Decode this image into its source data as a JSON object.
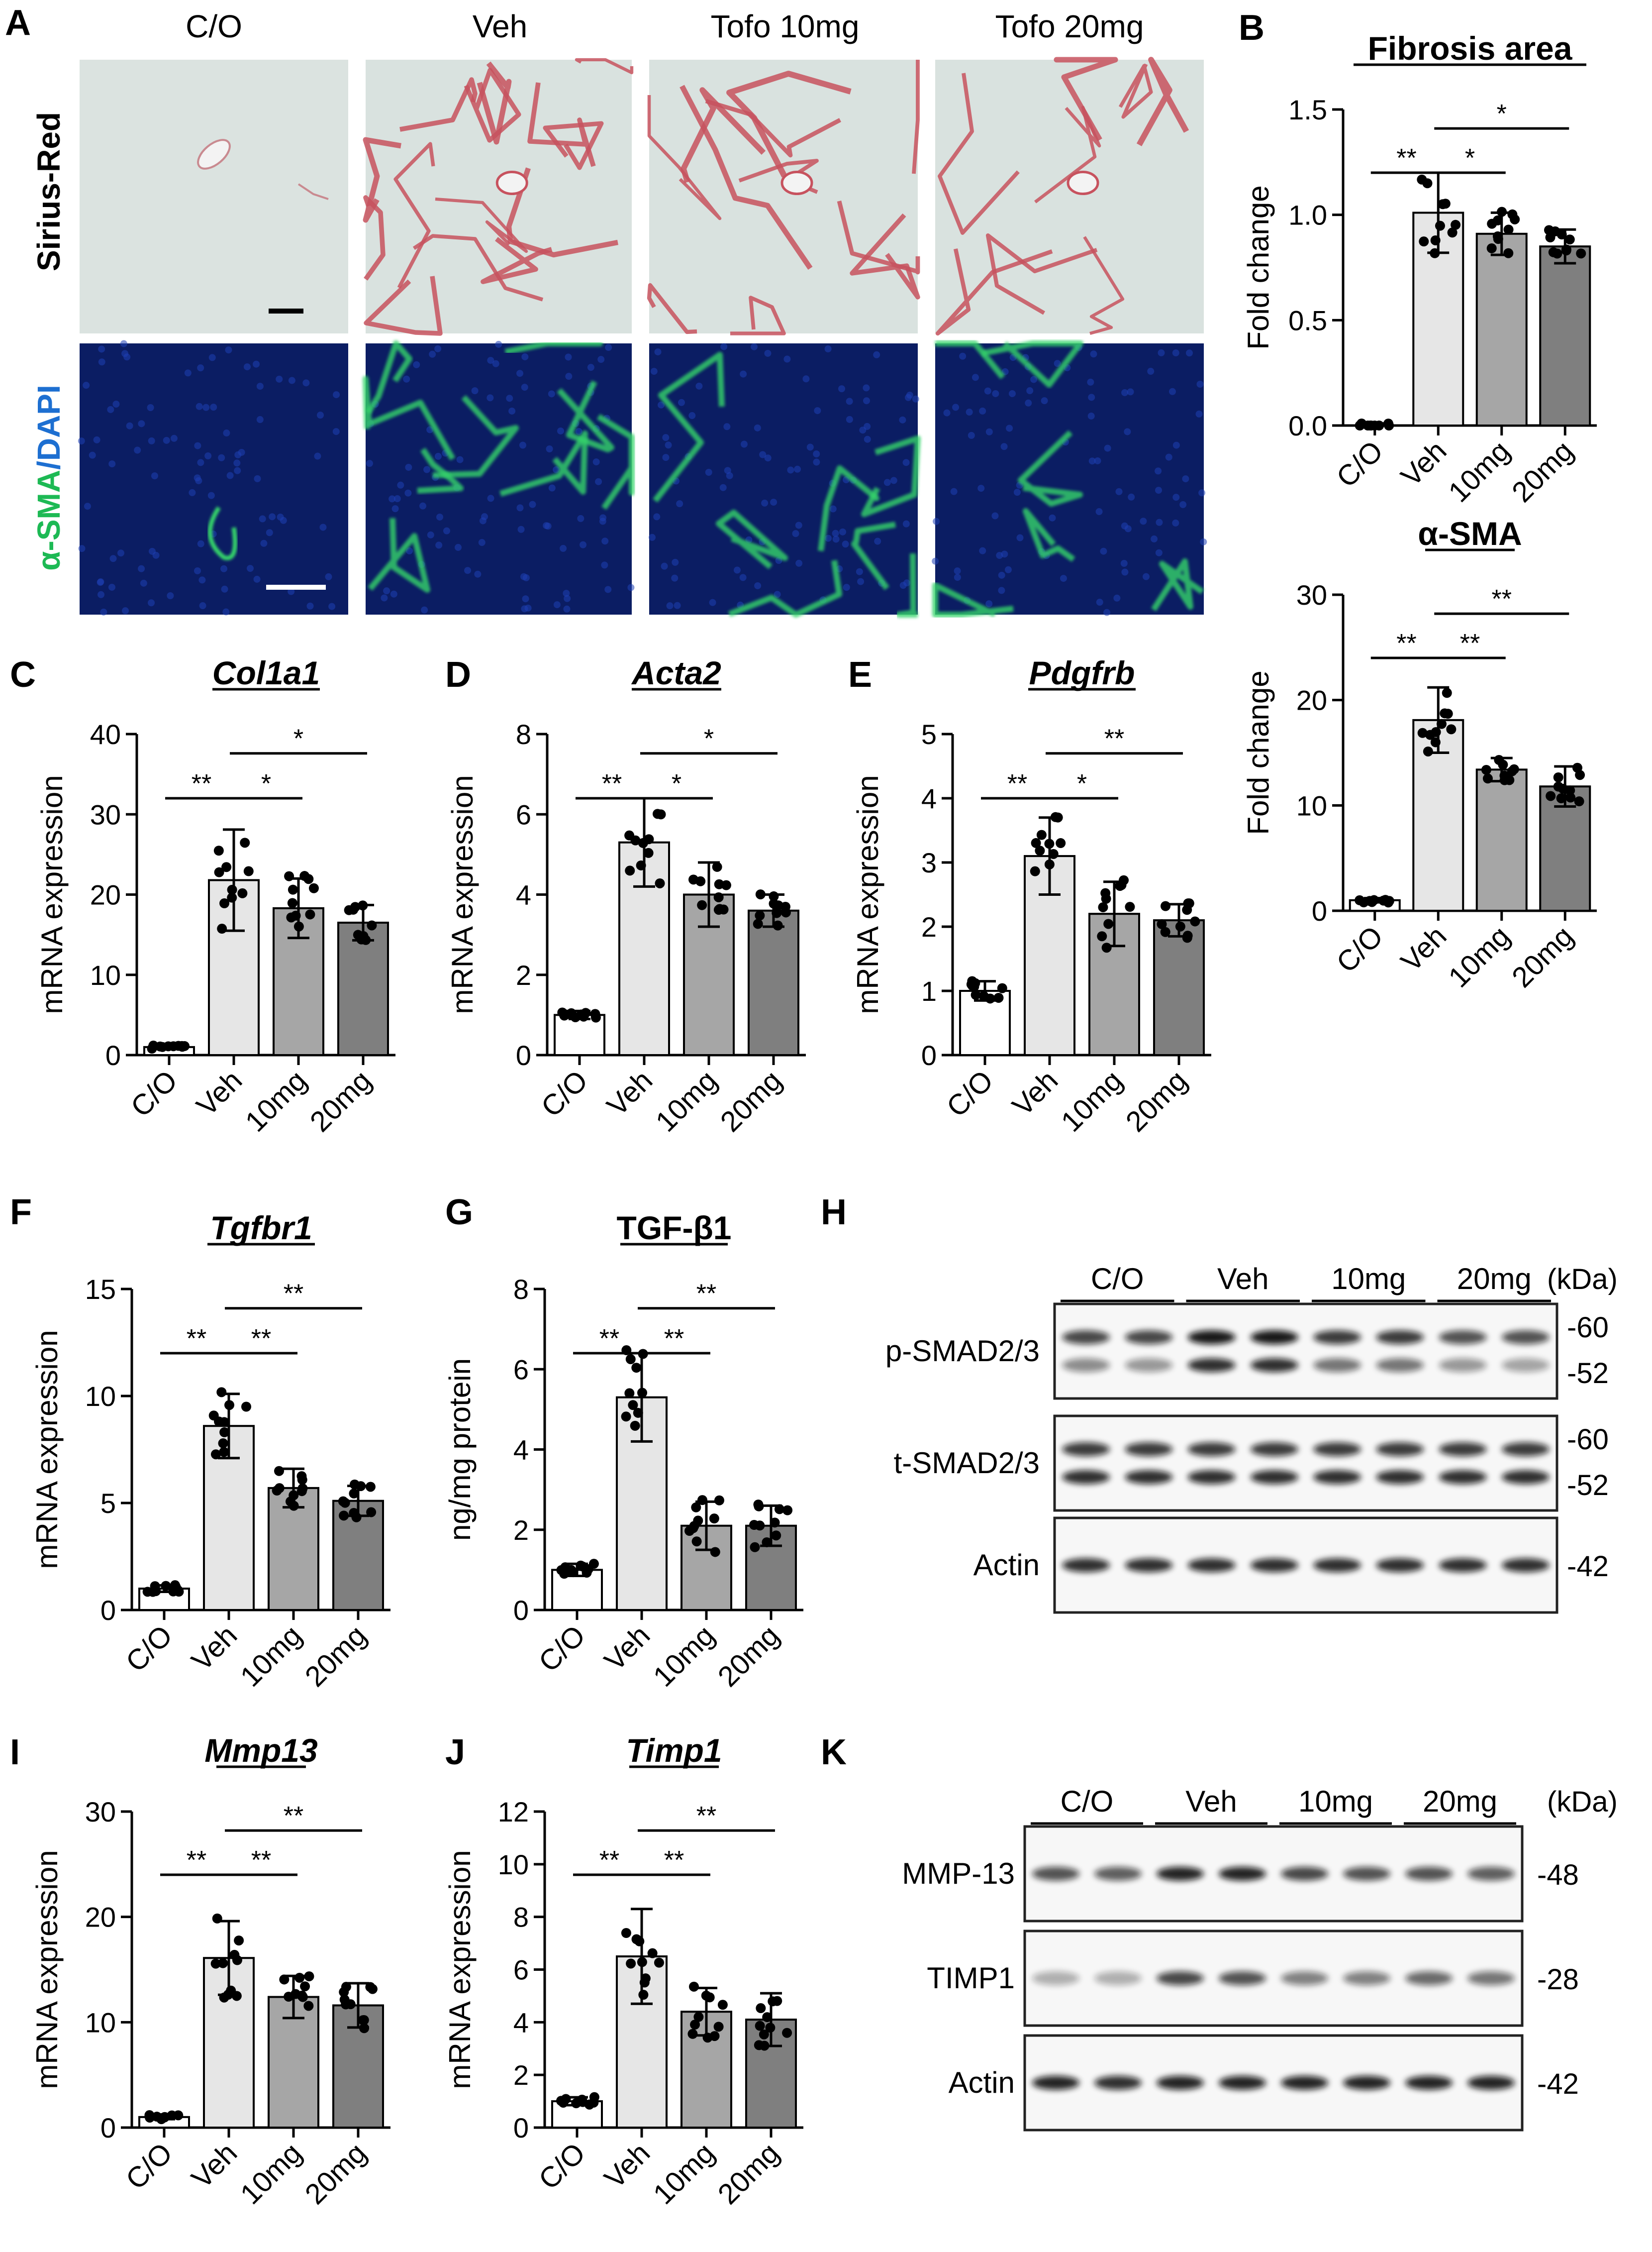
{
  "panel_letters": [
    "A",
    "B",
    "C",
    "D",
    "E",
    "F",
    "G",
    "H",
    "I",
    "J",
    "K"
  ],
  "panel_A": {
    "columns": [
      "C/O",
      "Veh",
      "Tofo 10mg",
      "Tofo 20mg"
    ],
    "row_labels": {
      "sirius": "Sirius-Red",
      "sma_green": "α-SMA",
      "sma_slash": "/",
      "sma_blue": "DAPI"
    }
  },
  "colors": {
    "bar_CO": "#ffffff",
    "bar_Veh": "#e6e6e6",
    "bar_10mg": "#a6a6a6",
    "bar_20mg": "#7f7f7f",
    "sirius_bg": "#d9e2df",
    "sirius_fiber": "#c7525e",
    "fluor_bg": "#0b1d63",
    "fluor_green": "#35d46a"
  },
  "chart_data": [
    {
      "panel": "B",
      "type": "bar",
      "title": "Fibrosis area",
      "title_italic": false,
      "ylabel": "Fold change",
      "categories": [
        "C/O",
        "Veh",
        "10mg",
        "20mg"
      ],
      "values": [
        0.0,
        1.01,
        0.91,
        0.85
      ],
      "sd": [
        0.01,
        0.19,
        0.1,
        0.08
      ],
      "ylim": [
        0,
        1.5
      ],
      "yticks": [
        "0.0",
        "0.5",
        "1.0",
        "1.5"
      ],
      "significance": [
        {
          "from": 0,
          "to": 1,
          "label": "**"
        },
        {
          "from": 1,
          "to": 2,
          "label": "*"
        },
        {
          "from": 1,
          "to": 3,
          "label": "*"
        }
      ]
    },
    {
      "panel": "B2",
      "type": "bar",
      "title": "α-SMA",
      "title_italic": false,
      "ylabel": "Fold change",
      "categories": [
        "C/O",
        "Veh",
        "10mg",
        "20mg"
      ],
      "values": [
        1.0,
        18.1,
        13.4,
        11.8
      ],
      "sd": [
        0.2,
        3.1,
        1.1,
        1.9
      ],
      "ylim": [
        0,
        30
      ],
      "yticks": [
        "0",
        "10",
        "20",
        "30"
      ],
      "significance": [
        {
          "from": 0,
          "to": 1,
          "label": "**"
        },
        {
          "from": 1,
          "to": 2,
          "label": "**"
        },
        {
          "from": 1,
          "to": 3,
          "label": "**"
        }
      ]
    },
    {
      "panel": "C",
      "type": "bar",
      "title": "Col1a1",
      "title_italic": true,
      "ylabel": "mRNA expression",
      "categories": [
        "C/O",
        "Veh",
        "10mg",
        "20mg"
      ],
      "values": [
        1.0,
        21.8,
        18.3,
        16.5
      ],
      "sd": [
        0.2,
        6.3,
        3.7,
        2.2
      ],
      "ylim": [
        0,
        40
      ],
      "yticks": [
        "0",
        "10",
        "20",
        "30",
        "40"
      ],
      "significance": [
        {
          "from": 0,
          "to": 1,
          "label": "**"
        },
        {
          "from": 1,
          "to": 2,
          "label": "*"
        },
        {
          "from": 1,
          "to": 3,
          "label": "*"
        }
      ]
    },
    {
      "panel": "D",
      "type": "bar",
      "title": "Acta2",
      "title_italic": true,
      "ylabel": "mRNA expression",
      "categories": [
        "C/O",
        "Veh",
        "10mg",
        "20mg"
      ],
      "values": [
        1.0,
        5.3,
        4.0,
        3.6
      ],
      "sd": [
        0.1,
        1.1,
        0.8,
        0.4
      ],
      "ylim": [
        0,
        8
      ],
      "yticks": [
        "0",
        "2",
        "4",
        "6",
        "8"
      ],
      "significance": [
        {
          "from": 0,
          "to": 1,
          "label": "**"
        },
        {
          "from": 1,
          "to": 2,
          "label": "*"
        },
        {
          "from": 1,
          "to": 3,
          "label": "*"
        }
      ]
    },
    {
      "panel": "E",
      "type": "bar",
      "title": "Pdgfrb",
      "title_italic": true,
      "ylabel": "mRNA expression",
      "categories": [
        "C/O",
        "Veh",
        "10mg",
        "20mg"
      ],
      "values": [
        1.0,
        3.1,
        2.2,
        2.1
      ],
      "sd": [
        0.15,
        0.6,
        0.5,
        0.25
      ],
      "ylim": [
        0,
        5
      ],
      "yticks": [
        "0",
        "1",
        "2",
        "3",
        "4",
        "5"
      ],
      "significance": [
        {
          "from": 0,
          "to": 1,
          "label": "**"
        },
        {
          "from": 1,
          "to": 2,
          "label": "*"
        },
        {
          "from": 1,
          "to": 3,
          "label": "**"
        }
      ]
    },
    {
      "panel": "F",
      "type": "bar",
      "title": "Tgfbr1",
      "title_italic": true,
      "ylabel": "mRNA expression",
      "categories": [
        "C/O",
        "Veh",
        "10mg",
        "20mg"
      ],
      "values": [
        1.0,
        8.6,
        5.7,
        5.1
      ],
      "sd": [
        0.15,
        1.5,
        0.9,
        0.7
      ],
      "ylim": [
        0,
        15
      ],
      "yticks": [
        "0",
        "5",
        "10",
        "15"
      ],
      "significance": [
        {
          "from": 0,
          "to": 1,
          "label": "**"
        },
        {
          "from": 1,
          "to": 2,
          "label": "**"
        },
        {
          "from": 1,
          "to": 3,
          "label": "**"
        }
      ]
    },
    {
      "panel": "G",
      "type": "bar",
      "title": "TGF-β1",
      "title_italic": false,
      "ylabel": "ng/mg protein",
      "categories": [
        "C/O",
        "Veh",
        "10mg",
        "20mg"
      ],
      "values": [
        1.0,
        5.3,
        2.1,
        2.1
      ],
      "sd": [
        0.15,
        1.1,
        0.6,
        0.5
      ],
      "ylim": [
        0,
        8
      ],
      "yticks": [
        "0",
        "2",
        "4",
        "6",
        "8"
      ],
      "significance": [
        {
          "from": 0,
          "to": 1,
          "label": "**"
        },
        {
          "from": 1,
          "to": 2,
          "label": "**"
        },
        {
          "from": 1,
          "to": 3,
          "label": "**"
        }
      ]
    },
    {
      "panel": "I",
      "type": "bar",
      "title": "Mmp13",
      "title_italic": true,
      "ylabel": "mRNA expression",
      "categories": [
        "C/O",
        "Veh",
        "10mg",
        "20mg"
      ],
      "values": [
        1.0,
        16.1,
        12.4,
        11.6
      ],
      "sd": [
        0.2,
        3.5,
        2.0,
        2.1
      ],
      "ylim": [
        0,
        30
      ],
      "yticks": [
        "0",
        "10",
        "20",
        "30"
      ],
      "significance": [
        {
          "from": 0,
          "to": 1,
          "label": "**"
        },
        {
          "from": 1,
          "to": 2,
          "label": "**"
        },
        {
          "from": 1,
          "to": 3,
          "label": "**"
        }
      ]
    },
    {
      "panel": "J",
      "type": "bar",
      "title": "Timp1",
      "title_italic": true,
      "ylabel": "mRNA expression",
      "categories": [
        "C/O",
        "Veh",
        "10mg",
        "20mg"
      ],
      "values": [
        1.0,
        6.5,
        4.4,
        4.1
      ],
      "sd": [
        0.15,
        1.8,
        0.9,
        1.0
      ],
      "ylim": [
        0,
        12
      ],
      "yticks": [
        "0",
        "2",
        "4",
        "6",
        "8",
        "10",
        "12"
      ],
      "significance": [
        {
          "from": 0,
          "to": 1,
          "label": "**"
        },
        {
          "from": 1,
          "to": 2,
          "label": "**"
        },
        {
          "from": 1,
          "to": 3,
          "label": "**"
        }
      ]
    }
  ],
  "blots": [
    {
      "panel": "H",
      "groups": [
        "C/O",
        "Veh",
        "10mg",
        "20mg"
      ],
      "unit_label": "(kDa)",
      "rows": [
        {
          "label": "p-SMAD2/3",
          "double": true,
          "markers": [
            "-60",
            "-52"
          ],
          "top_intensity": [
            0.75,
            0.75,
            0.95,
            0.95,
            0.8,
            0.8,
            0.7,
            0.7
          ],
          "bottom_intensity": [
            0.45,
            0.4,
            0.85,
            0.85,
            0.55,
            0.55,
            0.4,
            0.35
          ]
        },
        {
          "label": "t-SMAD2/3",
          "double": true,
          "markers": [
            "-60",
            "-52"
          ],
          "top_intensity": [
            0.8,
            0.8,
            0.8,
            0.8,
            0.8,
            0.8,
            0.8,
            0.8
          ],
          "bottom_intensity": [
            0.85,
            0.85,
            0.85,
            0.85,
            0.85,
            0.85,
            0.85,
            0.85
          ]
        },
        {
          "label": "Actin",
          "double": false,
          "markers": [
            "-42"
          ],
          "top_intensity": [
            0.85,
            0.85,
            0.85,
            0.85,
            0.85,
            0.85,
            0.85,
            0.85
          ]
        }
      ]
    },
    {
      "panel": "K",
      "groups": [
        "C/O",
        "Veh",
        "10mg",
        "20mg"
      ],
      "unit_label": "(kDa)",
      "rows": [
        {
          "label": "MMP-13",
          "double": false,
          "markers": [
            "-48"
          ],
          "top_intensity": [
            0.7,
            0.65,
            0.9,
            0.9,
            0.75,
            0.7,
            0.7,
            0.65
          ]
        },
        {
          "label": "TIMP1",
          "double": false,
          "markers": [
            "-28"
          ],
          "top_intensity": [
            0.3,
            0.3,
            0.75,
            0.7,
            0.5,
            0.5,
            0.6,
            0.55
          ]
        },
        {
          "label": "Actin",
          "double": false,
          "markers": [
            "-42"
          ],
          "top_intensity": [
            0.9,
            0.85,
            0.9,
            0.9,
            0.9,
            0.9,
            0.9,
            0.9
          ]
        }
      ]
    }
  ]
}
